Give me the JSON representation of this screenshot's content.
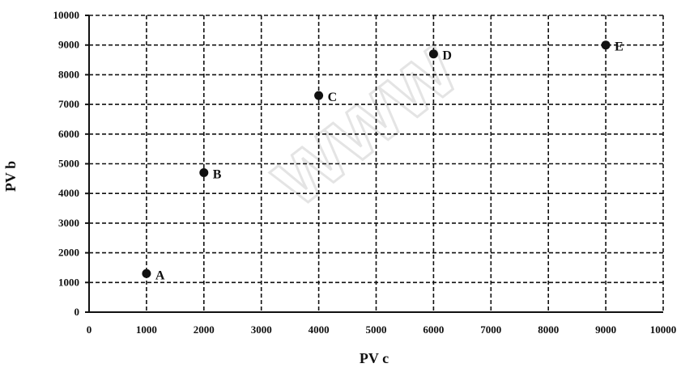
{
  "chart_data": {
    "type": "scatter",
    "xlabel": "PV c",
    "ylabel": "PV b",
    "xlim": [
      0,
      10000
    ],
    "ylim": [
      0,
      10000
    ],
    "x_ticks": [
      0,
      1000,
      2000,
      3000,
      4000,
      5000,
      6000,
      7000,
      8000,
      9000,
      10000
    ],
    "y_ticks": [
      0,
      1000,
      2000,
      3000,
      4000,
      5000,
      6000,
      7000,
      8000,
      9000,
      10000
    ],
    "grid": true,
    "grid_style": "dashed",
    "points": [
      {
        "label": "A",
        "x": 1000,
        "y": 1300
      },
      {
        "label": "B",
        "x": 2000,
        "y": 4700
      },
      {
        "label": "C",
        "x": 4000,
        "y": 7300
      },
      {
        "label": "D",
        "x": 6000,
        "y": 8700
      },
      {
        "label": "E",
        "x": 9000,
        "y": 9000
      }
    ],
    "watermark": "www"
  },
  "colors": {
    "marker": "#111111",
    "grid": "#111111",
    "axis": "#111111",
    "watermark": "#cfcfcf"
  }
}
